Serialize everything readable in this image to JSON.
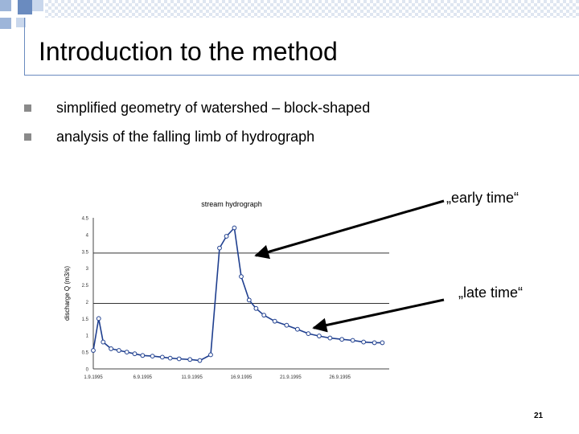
{
  "slide": {
    "title": "Introduction to the method",
    "bullets": [
      "simplified geometry of watershed – block-shaped",
      "analysis of the falling limb of hydrograph"
    ],
    "early_label": "„early time“",
    "late_label": "„late time“",
    "page_number": "21"
  },
  "colors": {
    "deco_blue": "#9db5d9",
    "deco_blue_dark": "#6a8bbf",
    "bullet_grey": "#8a8a8a",
    "series_line": "#1f3f8f",
    "marker_fill": "#ffffff"
  },
  "chart_data": {
    "type": "line",
    "title": "stream hydrograph",
    "ylabel": "discharge Q (m3/s)",
    "xlabel": "",
    "ylim": [
      0,
      4.5
    ],
    "yticks": [
      "0",
      "0.5",
      "1",
      "1.5",
      "2",
      "2.5",
      "3",
      "3.5",
      "4",
      "4.5"
    ],
    "xticks": [
      "1.9.1995",
      "6.9.1995",
      "11.9.1995",
      "16.9.1995",
      "21.9.1995",
      "26.9.1995"
    ],
    "hlines": [
      1.95,
      3.45
    ],
    "x": [
      0,
      0.55,
      1,
      1.8,
      2.6,
      3.4,
      4.2,
      5,
      6,
      7,
      7.8,
      8.7,
      9.8,
      10.8,
      11.9,
      12.8,
      13.5,
      14.3,
      15.0,
      15.8,
      16.5,
      17.3,
      18.4,
      19.6,
      20.7,
      21.8,
      22.9,
      24.0,
      25.2,
      26.3,
      27.4,
      28.5,
      29.3
    ],
    "y": [
      0.55,
      1.5,
      0.8,
      0.6,
      0.55,
      0.5,
      0.45,
      0.4,
      0.38,
      0.35,
      0.32,
      0.3,
      0.28,
      0.25,
      0.42,
      3.6,
      3.95,
      4.2,
      2.75,
      2.05,
      1.8,
      1.6,
      1.42,
      1.3,
      1.18,
      1.05,
      0.98,
      0.92,
      0.88,
      0.85,
      0.8,
      0.78,
      0.78
    ]
  }
}
